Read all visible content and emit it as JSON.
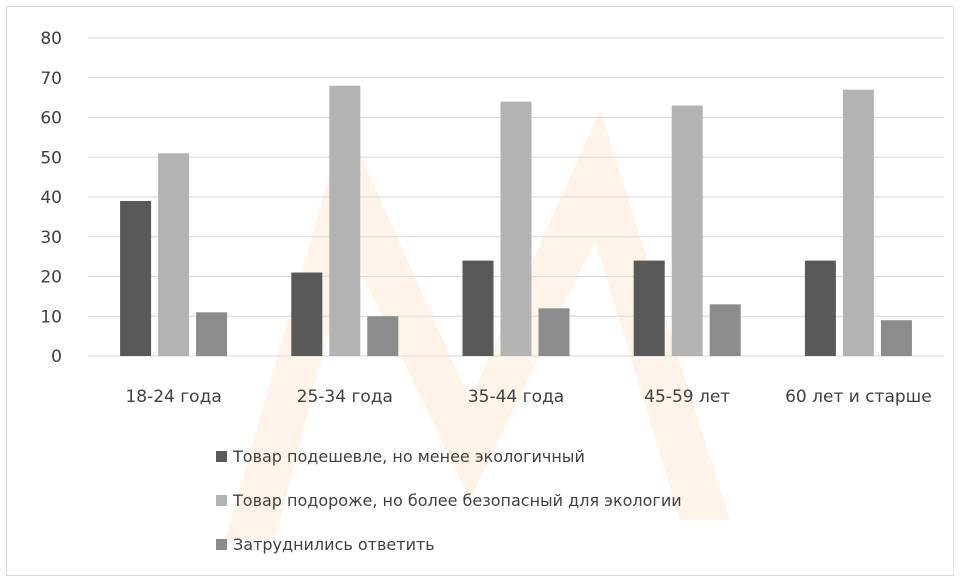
{
  "chart_data": {
    "type": "bar",
    "categories": [
      "18-24 года",
      "25-34 года",
      "35-44 года",
      "45-59 лет",
      "60 лет и старше"
    ],
    "series": [
      {
        "name": "Товар подешевле, но менее экологичный",
        "values": [
          39,
          21,
          24,
          24,
          24
        ],
        "color": "#595959"
      },
      {
        "name": "Товар подороже, но более безопасный для экологии",
        "values": [
          51,
          68,
          64,
          63,
          67
        ],
        "color": "#b3b3b3"
      },
      {
        "name": "Затруднились ответить",
        "values": [
          11,
          10,
          12,
          13,
          9
        ],
        "color": "#8c8c8c"
      }
    ],
    "ylim": [
      0,
      80
    ],
    "yticks": [
      0,
      10,
      20,
      30,
      40,
      50,
      60,
      70,
      80
    ],
    "grid": true,
    "legend_position": "bottom",
    "gridline_color": "#d9d9d9",
    "watermark_color": "#f6c89a"
  }
}
